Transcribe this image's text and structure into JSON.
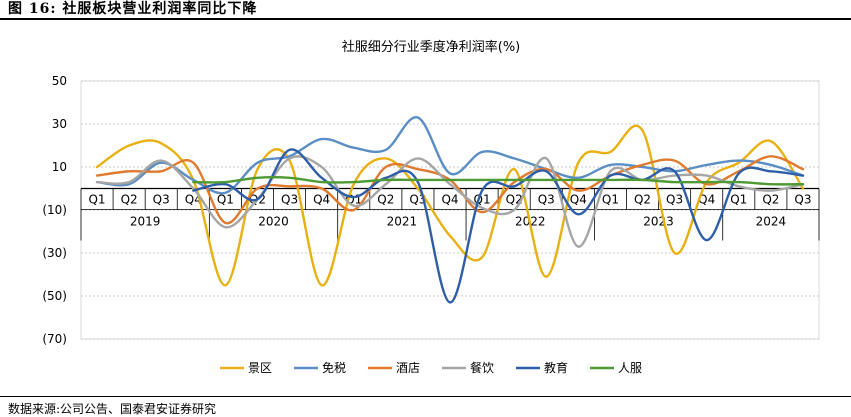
{
  "figure_title": "图 16:  社服板块营业利润率同比下降",
  "source_note": "数据来源:公司公告、国泰君安证券研究",
  "chart_data": {
    "type": "line",
    "title": "社服细分行业季度净利润率(%)",
    "ylim": [
      -70,
      50
    ],
    "yticks": [
      50,
      30,
      10,
      -10,
      -30,
      -50,
      -70
    ],
    "ytick_labels": [
      "50",
      "30",
      "10",
      "(10)",
      "(30)",
      "(50)",
      "(70)"
    ],
    "quarters": [
      "Q1",
      "Q2",
      "Q3",
      "Q4",
      "Q1",
      "Q2",
      "Q3",
      "Q4",
      "Q1",
      "Q2",
      "Q3",
      "Q4",
      "Q1",
      "Q2",
      "Q3",
      "Q4",
      "Q1",
      "Q2",
      "Q3",
      "Q4",
      "Q1",
      "Q2",
      "Q3"
    ],
    "years": [
      {
        "label": "2019",
        "span": 4
      },
      {
        "label": "2020",
        "span": 4
      },
      {
        "label": "2021",
        "span": 4
      },
      {
        "label": "2022",
        "span": 4
      },
      {
        "label": "2023",
        "span": 4
      },
      {
        "label": "2024",
        "span": 3
      }
    ],
    "grid": true,
    "legend_position": "bottom",
    "series": [
      {
        "name": "景区",
        "color": "#E8B012",
        "values": [
          10,
          20,
          21,
          4,
          -45,
          9,
          13,
          -45,
          2,
          14,
          0,
          -22,
          -32,
          9,
          -41,
          12,
          17,
          27,
          -30,
          3,
          12,
          22,
          0
        ]
      },
      {
        "name": "免税",
        "color": "#5B8EC5",
        "values": [
          3,
          2,
          12,
          4,
          -2,
          12,
          15,
          23,
          19,
          18,
          33,
          7,
          17,
          14,
          9,
          5,
          11,
          10,
          8,
          11,
          13,
          11,
          6
        ]
      },
      {
        "name": "酒店",
        "color": "#E07A2E",
        "values": [
          6,
          8,
          8,
          12,
          -16,
          0,
          1,
          0,
          -10,
          10,
          9,
          4,
          -11,
          3,
          9,
          -1,
          6,
          11,
          13,
          2,
          8,
          15,
          9
        ]
      },
      {
        "name": "餐饮",
        "color": "#A6A6A6",
        "values": [
          3,
          3,
          13,
          0,
          -18,
          -5,
          14,
          10,
          -8,
          2,
          14,
          2,
          -9,
          -10,
          14,
          -27,
          8,
          4,
          6,
          6,
          1,
          -1,
          2
        ]
      },
      {
        "name": "教育",
        "color": "#2E5EA8",
        "values": [
          null,
          null,
          null,
          -1,
          2,
          -5,
          18,
          5,
          -4,
          5,
          3,
          -53,
          -1,
          1,
          8,
          -12,
          6,
          4,
          8,
          -24,
          7,
          8,
          6
        ]
      },
      {
        "name": "人服",
        "color": "#4E9A33",
        "values": [
          null,
          null,
          null,
          3,
          3,
          5,
          5,
          3,
          3,
          4,
          4,
          4,
          4,
          4,
          4,
          4,
          4,
          4,
          3,
          3,
          3,
          2,
          2
        ]
      }
    ]
  }
}
